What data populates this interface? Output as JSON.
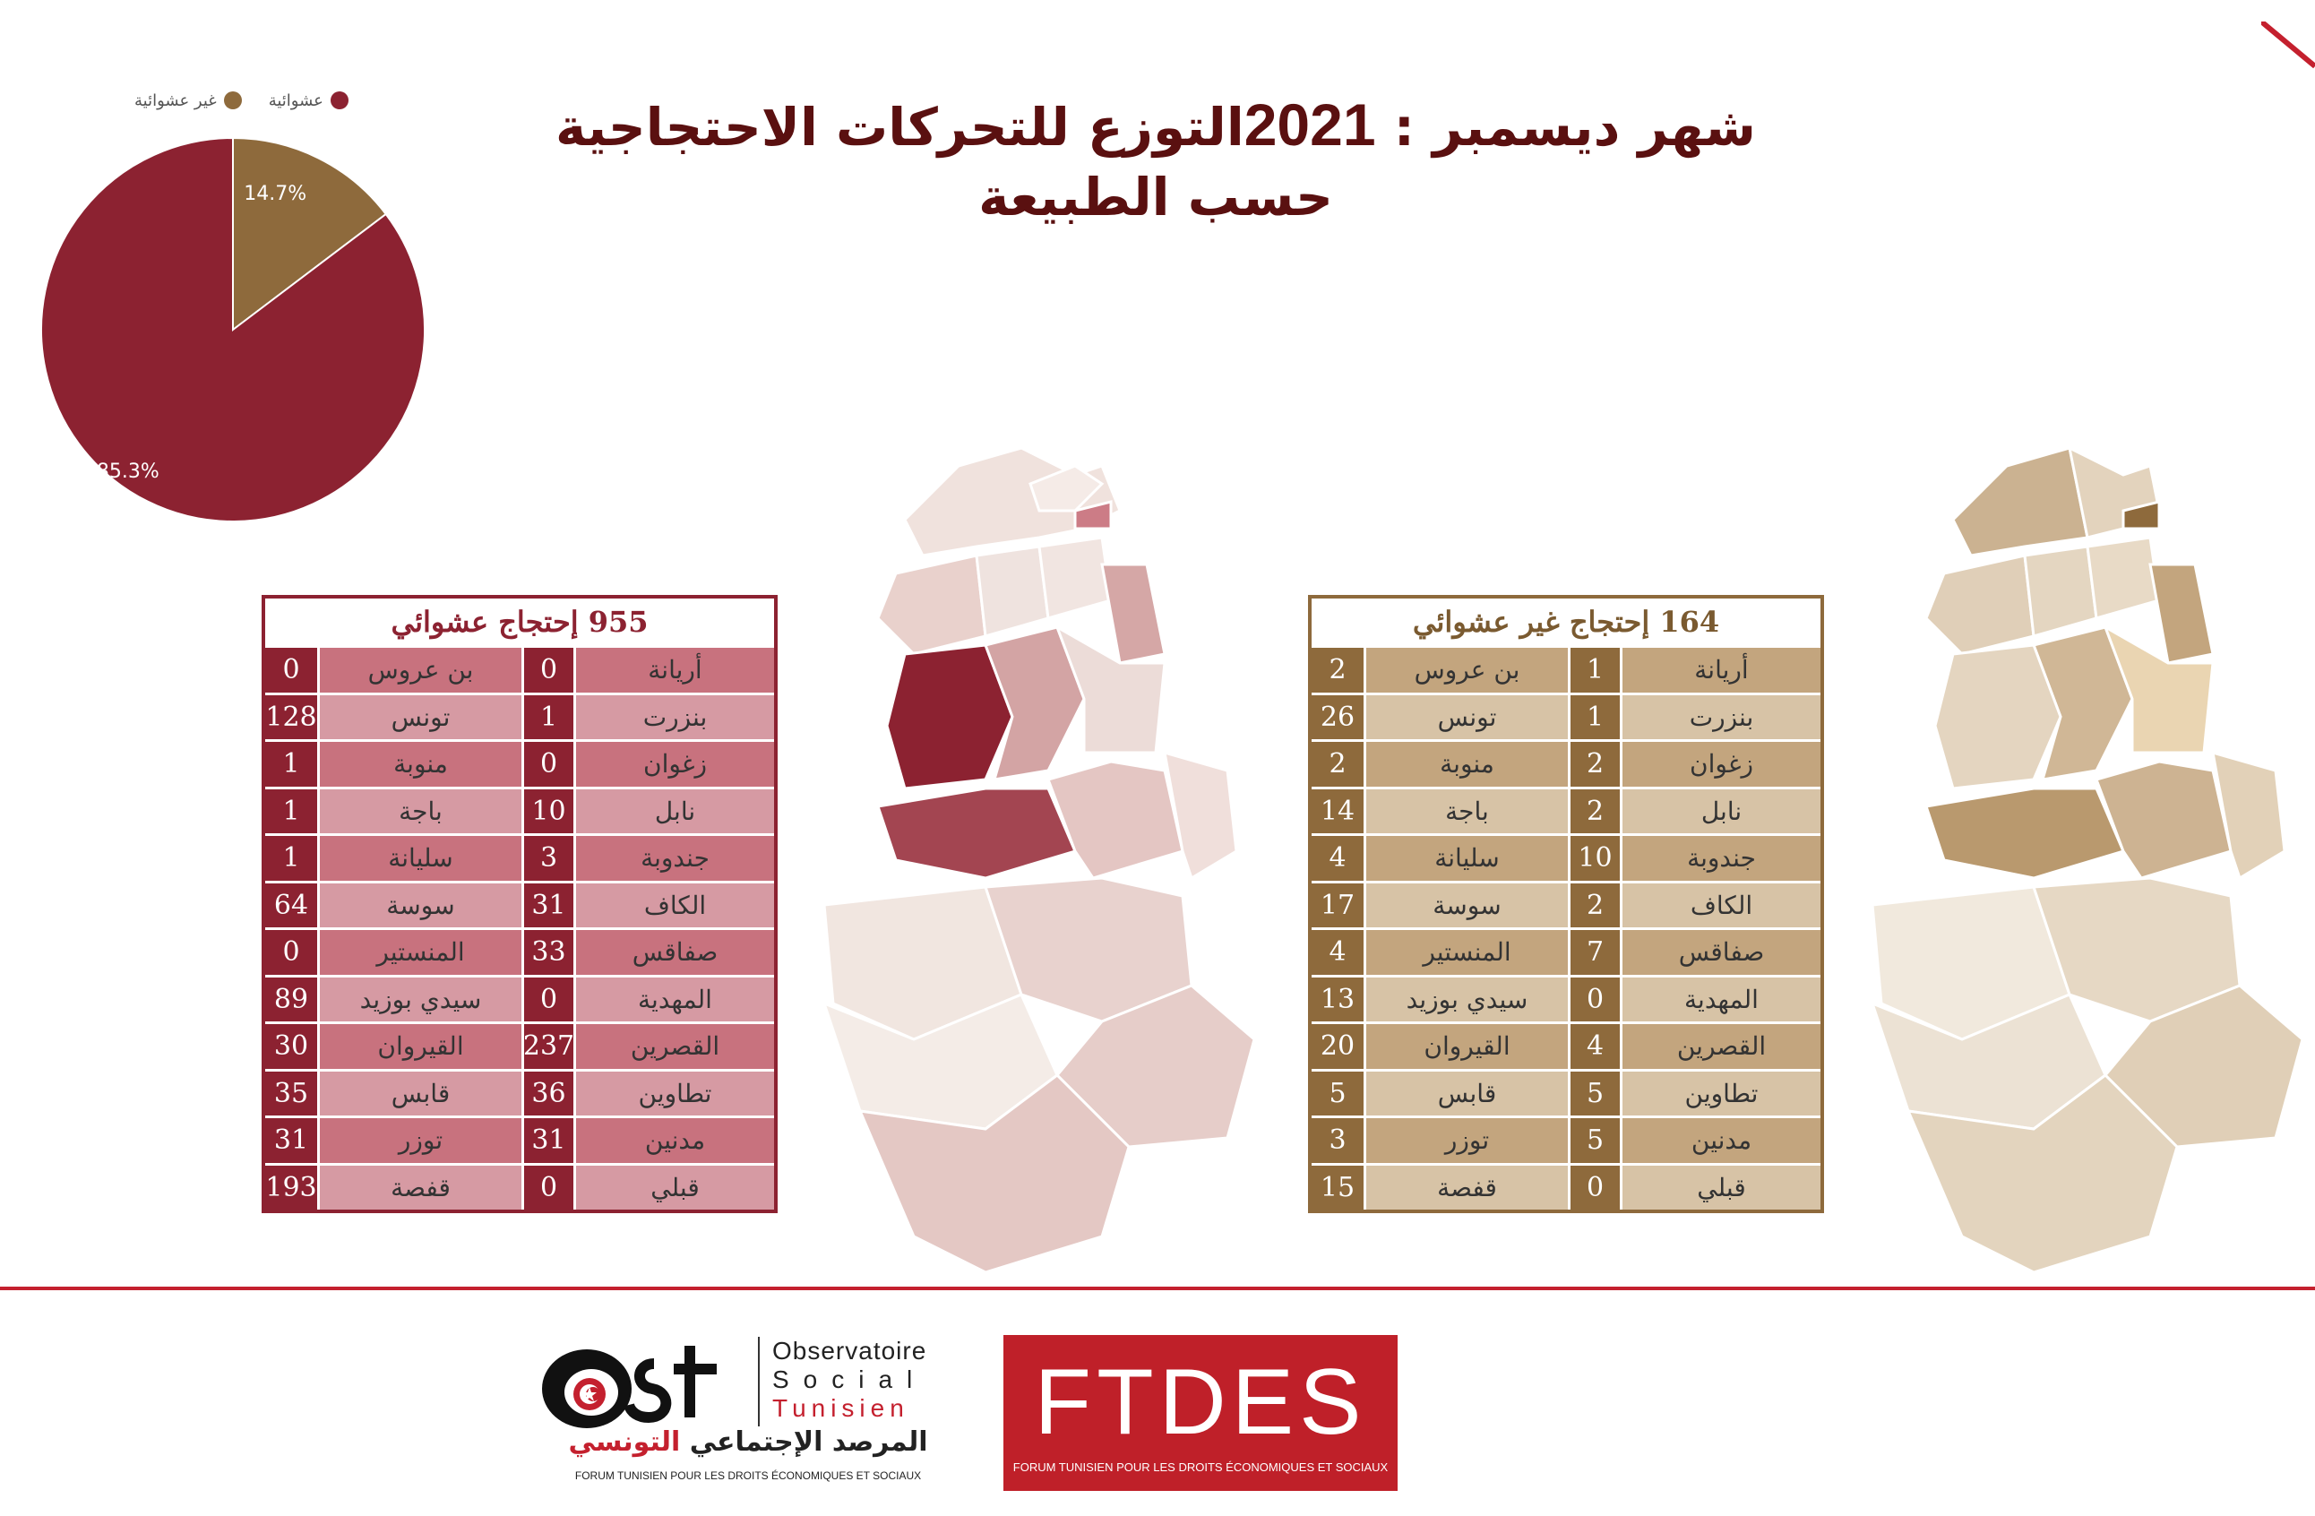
{
  "title": {
    "prefix": "شهر ديسمبر  : ",
    "year": "2021",
    "text": "التوزع للتحركات الاحتجاجية حسب الطبيعة"
  },
  "chart_data": {
    "type": "pie",
    "legend": [
      "عشوائية",
      "غير عشوائية"
    ],
    "legend_position": "top",
    "slices": [
      {
        "name": "عشوائية",
        "value": 85.3,
        "label": "85.3%",
        "color": "#8c2231"
      },
      {
        "name": "غير عشوائية",
        "value": 14.7,
        "label": "14.7%",
        "color": "#8e6a3c"
      }
    ]
  },
  "tables": {
    "random": {
      "title": "955 إحتجاج عشوائي",
      "rows": [
        {
          "right_name": "أريانة",
          "right_value": "0",
          "left_name": "بن عروس",
          "left_value": "0"
        },
        {
          "right_name": "بنزرت",
          "right_value": "1",
          "left_name": "تونس",
          "left_value": "128"
        },
        {
          "right_name": "زغوان",
          "right_value": "0",
          "left_name": "منوبة",
          "left_value": "1"
        },
        {
          "right_name": "نابل",
          "right_value": "10",
          "left_name": "باجة",
          "left_value": "1"
        },
        {
          "right_name": "جندوبة",
          "right_value": "3",
          "left_name": "سليانة",
          "left_value": "1"
        },
        {
          "right_name": "الكاف",
          "right_value": "31",
          "left_name": "سوسة",
          "left_value": "64"
        },
        {
          "right_name": "صفاقس",
          "right_value": "33",
          "left_name": "المنستير",
          "left_value": "0"
        },
        {
          "right_name": "المهدية",
          "right_value": "0",
          "left_name": "سيدي بوزيد",
          "left_value": "89"
        },
        {
          "right_name": "القصرين",
          "right_value": "237",
          "left_name": "القيروان",
          "left_value": "30"
        },
        {
          "right_name": "تطاوين",
          "right_value": "36",
          "left_name": "قابس",
          "left_value": "35"
        },
        {
          "right_name": "مدنين",
          "right_value": "31",
          "left_name": "توزر",
          "left_value": "31"
        },
        {
          "right_name": "قبلي",
          "right_value": "0",
          "left_name": "قفصة",
          "left_value": "193"
        }
      ]
    },
    "nonrandom": {
      "title": "164 إحتجاج غير عشوائي",
      "rows": [
        {
          "right_name": "أريانة",
          "right_value": "1",
          "left_name": "بن عروس",
          "left_value": "2"
        },
        {
          "right_name": "بنزرت",
          "right_value": "1",
          "left_name": "تونس",
          "left_value": "26"
        },
        {
          "right_name": "زغوان",
          "right_value": "2",
          "left_name": "منوبة",
          "left_value": "2"
        },
        {
          "right_name": "نابل",
          "right_value": "2",
          "left_name": "باجة",
          "left_value": "14"
        },
        {
          "right_name": "جندوبة",
          "right_value": "10",
          "left_name": "سليانة",
          "left_value": "4"
        },
        {
          "right_name": "الكاف",
          "right_value": "2",
          "left_name": "سوسة",
          "left_value": "17"
        },
        {
          "right_name": "صفاقس",
          "right_value": "7",
          "left_name": "المنستير",
          "left_value": "4"
        },
        {
          "right_name": "المهدية",
          "right_value": "0",
          "left_name": "سيدي بوزيد",
          "left_value": "13"
        },
        {
          "right_name": "القصرين",
          "right_value": "4",
          "left_name": "القيروان",
          "left_value": "20"
        },
        {
          "right_name": "تطاوين",
          "right_value": "5",
          "left_name": "قابس",
          "left_value": "5"
        },
        {
          "right_name": "مدنين",
          "right_value": "5",
          "left_name": "توزر",
          "left_value": "3"
        },
        {
          "right_name": "قبلي",
          "right_value": "0",
          "left_name": "قفصة",
          "left_value": "15"
        }
      ]
    }
  },
  "footer": {
    "ost": {
      "abbr": "Ost",
      "fr_line1": "Observatoire",
      "fr_line2": "Social",
      "fr_line3": "Tunisien",
      "ar_dark": "المرصد الإجتماعي",
      "ar_red": "التونسي",
      "subtitle": "FORUM TUNISIEN POUR LES DROITS ÉCONOMIQUES ET SOCIAUX"
    },
    "ftdes": {
      "name": "FTDES",
      "subtitle": "FORUM TUNISIEN POUR LES DROITS ÉCONOMIQUES ET SOCIAUX"
    }
  },
  "colors": {
    "random": "#8c2231",
    "nonrandom": "#8e6a3c",
    "accent": "#c4202e"
  }
}
